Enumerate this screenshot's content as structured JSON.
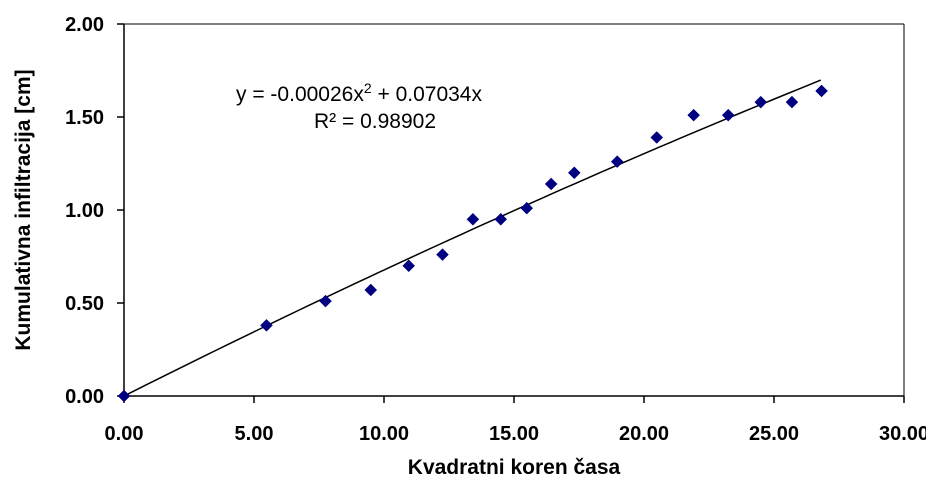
{
  "chart_data": {
    "type": "scatter",
    "xlabel": "Kvadratni koren časa",
    "ylabel": "Kumulativna infiltracija [cm]",
    "xlim": [
      0,
      30
    ],
    "ylim": [
      0,
      2
    ],
    "x_ticks": [
      "0.00",
      "5.00",
      "10.00",
      "15.00",
      "20.00",
      "25.00",
      "30.00"
    ],
    "y_ticks": [
      "0.00",
      "0.50",
      "1.00",
      "1.50",
      "2.00"
    ],
    "grid": false,
    "marker_color": "#000080",
    "trendline": {
      "type": "polynomial",
      "a": -0.00026,
      "b": 0.07034,
      "x_range": [
        0,
        26.8
      ],
      "equation_prefix": "y = -0.00026x",
      "equation_exponent": "2",
      "equation_suffix": " + 0.07034x",
      "r2_label": "R² = 0.98902",
      "color": "#000000"
    },
    "series": [
      {
        "x": [
          0.0,
          5.48,
          7.75,
          9.49,
          10.95,
          12.25,
          13.42,
          14.49,
          15.49,
          16.43,
          17.32,
          18.97,
          20.49,
          21.91,
          23.24,
          24.49,
          25.69,
          26.83
        ],
        "y": [
          0.0,
          0.38,
          0.51,
          0.57,
          0.7,
          0.76,
          0.95,
          0.95,
          1.01,
          1.14,
          1.2,
          1.26,
          1.39,
          1.51,
          1.51,
          1.58,
          1.58,
          1.64
        ]
      }
    ]
  }
}
